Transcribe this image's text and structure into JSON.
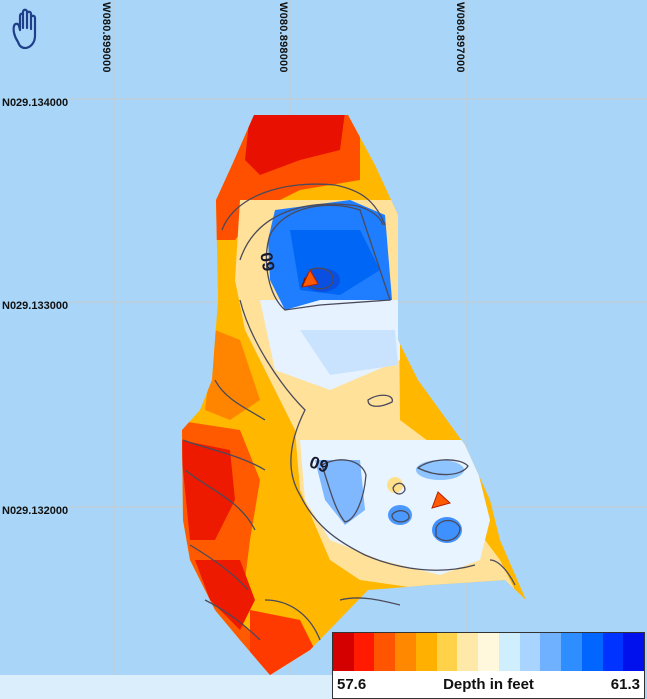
{
  "map": {
    "longitude_labels": [
      "W080.899000",
      "W080.898000",
      "W080.897000"
    ],
    "latitude_labels": [
      "N029.134000",
      "N029.133000",
      "N029.132000"
    ],
    "contour_labels": [
      "60",
      "60"
    ]
  },
  "toolbar": {
    "pan_tool": "hand-icon"
  },
  "legend": {
    "min": "57.6",
    "max": "61.3",
    "title": "Depth in feet",
    "colors": [
      "#d40000",
      "#ff1a00",
      "#ff5500",
      "#ff8800",
      "#ffb000",
      "#ffd24a",
      "#ffe9a8",
      "#fff8dc",
      "#cfefff",
      "#a8d4ff",
      "#6fb0ff",
      "#2e8eff",
      "#0066ff",
      "#0033ff",
      "#0011ee"
    ]
  }
}
